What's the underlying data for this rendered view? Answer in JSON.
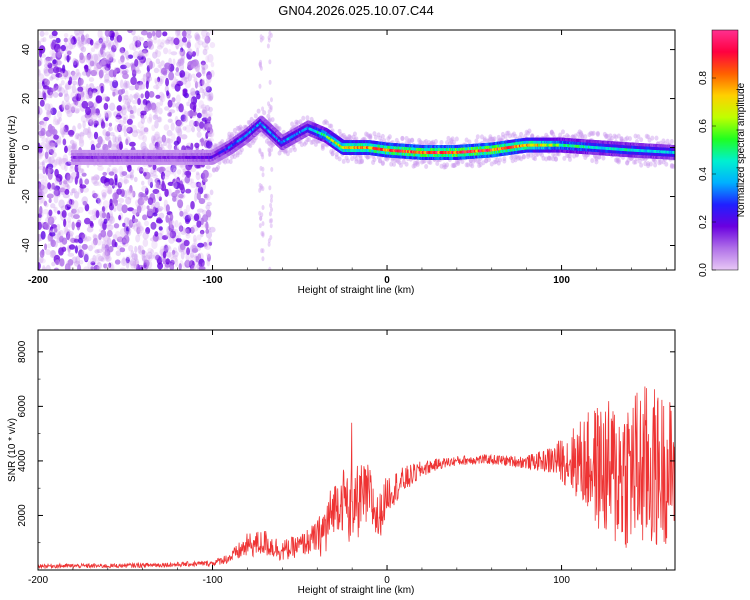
{
  "title": "GN04.2026.025.10.07.C44",
  "chart_data": [
    {
      "type": "heatmap",
      "name": "spectrogram",
      "xlabel": "Height of straight line (km)",
      "ylabel": "Frequency (Hz)",
      "xlim": [
        -200,
        165
      ],
      "ylim": [
        -50,
        48
      ],
      "xticks": [
        -200,
        -100,
        0,
        100
      ],
      "yticks": [
        -40,
        -20,
        0,
        20,
        40
      ],
      "colorbar": {
        "label": "Normalized spectral amplitude",
        "range": [
          0,
          1
        ],
        "ticks": [
          0.0,
          0.2,
          0.4,
          0.6,
          0.8
        ],
        "stops": [
          "#e8c8f5",
          "#b070e8",
          "#6a00e0",
          "#2020ff",
          "#00b0ff",
          "#00f0d0",
          "#20ff20",
          "#c0ff00",
          "#ffd000",
          "#ff6000",
          "#ff0040",
          "#ff3090"
        ]
      },
      "ridge": [
        {
          "x": -180,
          "y": -4,
          "amp": 0.15
        },
        {
          "x": -150,
          "y": -4,
          "amp": 0.15
        },
        {
          "x": -120,
          "y": -4,
          "amp": 0.15
        },
        {
          "x": -100,
          "y": -4,
          "amp": 0.2
        },
        {
          "x": -90,
          "y": 0,
          "amp": 0.3
        },
        {
          "x": -80,
          "y": 5,
          "amp": 0.35
        },
        {
          "x": -72,
          "y": 10,
          "amp": 0.35
        },
        {
          "x": -60,
          "y": 2,
          "amp": 0.35
        },
        {
          "x": -45,
          "y": 8,
          "amp": 0.35
        },
        {
          "x": -35,
          "y": 5,
          "amp": 0.55
        },
        {
          "x": -25,
          "y": 0,
          "amp": 0.75
        },
        {
          "x": -10,
          "y": 0,
          "amp": 0.8
        },
        {
          "x": 0,
          "y": -1,
          "amp": 0.85
        },
        {
          "x": 20,
          "y": -2,
          "amp": 0.9
        },
        {
          "x": 40,
          "y": -2,
          "amp": 0.92
        },
        {
          "x": 60,
          "y": -1,
          "amp": 0.9
        },
        {
          "x": 80,
          "y": 1,
          "amp": 0.8
        },
        {
          "x": 100,
          "y": 1,
          "amp": 0.55
        },
        {
          "x": 120,
          "y": 0,
          "amp": 0.45
        },
        {
          "x": 140,
          "y": -1,
          "amp": 0.45
        },
        {
          "x": 165,
          "y": -2,
          "amp": 0.4
        }
      ],
      "noise_region": {
        "x": [
          -200,
          -100
        ],
        "y": [
          -50,
          48
        ],
        "amp": 0.12
      }
    },
    {
      "type": "line",
      "name": "snr",
      "xlabel": "Height of straight line (km)",
      "ylabel": "SNR (10 * v/v)",
      "xlim": [
        -200,
        165
      ],
      "ylim": [
        0,
        8800
      ],
      "xticks": [
        -200,
        -100,
        0,
        100
      ],
      "yticks": [
        2000,
        4000,
        6000,
        8000
      ],
      "color": "#ee3333",
      "envelope": {
        "x": [
          -200,
          -160,
          -120,
          -100,
          -90,
          -80,
          -70,
          -60,
          -50,
          -40,
          -35,
          -30,
          -25,
          -20,
          -15,
          -10,
          -5,
          0,
          10,
          20,
          30,
          40,
          50,
          60,
          70,
          80,
          90,
          100,
          110,
          120,
          130,
          140,
          150,
          165
        ],
        "mid": [
          150,
          150,
          200,
          250,
          450,
          900,
          1000,
          700,
          900,
          1200,
          1500,
          2400,
          2600,
          2300,
          2600,
          2700,
          1800,
          2800,
          3300,
          3700,
          3900,
          4000,
          4050,
          4050,
          4000,
          3950,
          4000,
          4050,
          4000,
          3800,
          3500,
          3700,
          3700,
          3700
        ],
        "amp": [
          80,
          80,
          90,
          100,
          200,
          450,
          500,
          400,
          400,
          600,
          1200,
          900,
          1200,
          1600,
          1300,
          1200,
          900,
          700,
          500,
          300,
          200,
          180,
          180,
          180,
          200,
          250,
          400,
          800,
          1500,
          2300,
          2800,
          3000,
          3200,
          2500
        ]
      }
    }
  ]
}
